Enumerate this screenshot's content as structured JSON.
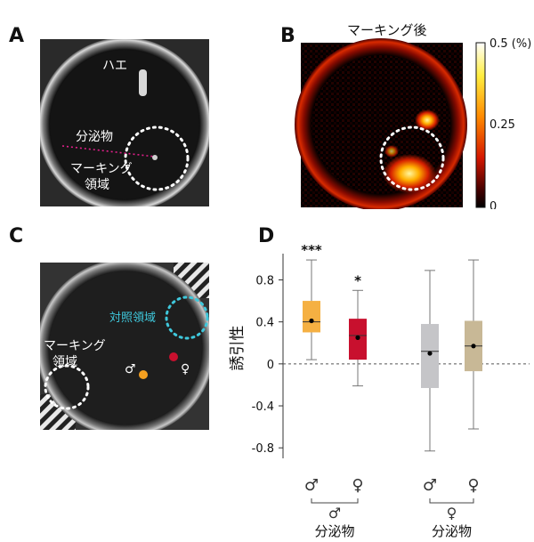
{
  "panels": {
    "A": {
      "label": "A",
      "fly_label": "ハエ",
      "secretion_label": "分泌物",
      "marking_label_line1": "マーキング",
      "marking_label_line2": "領域"
    },
    "B": {
      "label": "B",
      "title": "マーキング後",
      "colorbar_ticks": [
        "0.5 (%)",
        "0.25",
        "0"
      ]
    },
    "C": {
      "label": "C",
      "control_label": "対照領域",
      "marking_label_line1": "マーキング",
      "marking_label_line2": "領域",
      "male_symbol": "♂",
      "female_symbol": "♀"
    },
    "D": {
      "label": "D"
    }
  },
  "colors": {
    "male_male": "#f5b042",
    "male_female": "#c8102e",
    "female_male": "#c5c5c8",
    "female_female": "#c8b896",
    "control_circle": "#3fc8dc",
    "secretion_line": "#e0208a"
  },
  "chart_data": {
    "type": "box",
    "ylabel": "誘引性",
    "ylim": [
      -0.9,
      1.05
    ],
    "yticks": [
      0.8,
      0.4,
      0,
      -0.4,
      -0.8
    ],
    "ytick_labels": [
      "0.8",
      "0.4",
      "0",
      "-0.4",
      "-0.8"
    ],
    "reference_line": 0,
    "categories": [
      "♂",
      "♀",
      "♂",
      "♀"
    ],
    "groups": [
      {
        "label": "分泌物",
        "symbol": "♂"
      },
      {
        "label": "分泌物",
        "symbol": "♀"
      }
    ],
    "series": [
      {
        "whisker_low": 0.04,
        "q1": 0.3,
        "median": 0.4,
        "q3": 0.6,
        "whisker_high": 0.99,
        "mean": 0.41,
        "significance": "***"
      },
      {
        "whisker_low": -0.21,
        "q1": 0.04,
        "median": 0.27,
        "q3": 0.43,
        "whisker_high": 0.7,
        "mean": 0.25,
        "significance": "*"
      },
      {
        "whisker_low": -0.83,
        "q1": -0.23,
        "median": 0.12,
        "q3": 0.38,
        "whisker_high": 0.89,
        "mean": 0.1,
        "significance": ""
      },
      {
        "whisker_low": -0.62,
        "q1": -0.07,
        "median": 0.17,
        "q3": 0.41,
        "whisker_high": 0.99,
        "mean": 0.17,
        "significance": ""
      }
    ]
  }
}
